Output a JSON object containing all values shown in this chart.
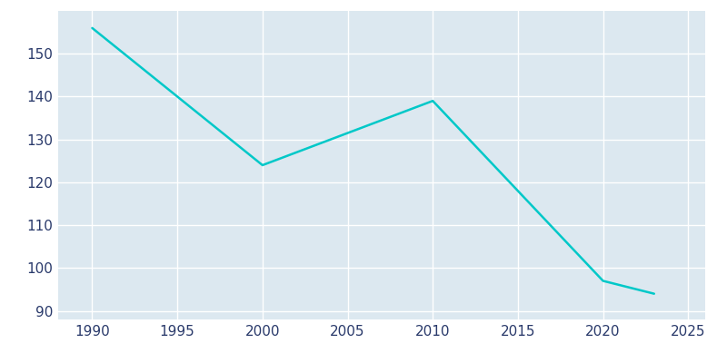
{
  "years": [
    1990,
    2000,
    2010,
    2020,
    2022,
    2023
  ],
  "population": [
    156,
    124,
    139,
    97,
    95,
    94
  ],
  "line_color": "#00c8c8",
  "fig_bg_color": "#ffffff",
  "plot_bg_color": "#dce8f0",
  "grid_color": "#ffffff",
  "tick_color": "#2a3a6b",
  "xlim": [
    1988,
    2026
  ],
  "ylim": [
    88,
    160
  ],
  "xticks": [
    1990,
    1995,
    2000,
    2005,
    2010,
    2015,
    2020,
    2025
  ],
  "yticks": [
    90,
    100,
    110,
    120,
    130,
    140,
    150
  ],
  "linewidth": 1.8
}
